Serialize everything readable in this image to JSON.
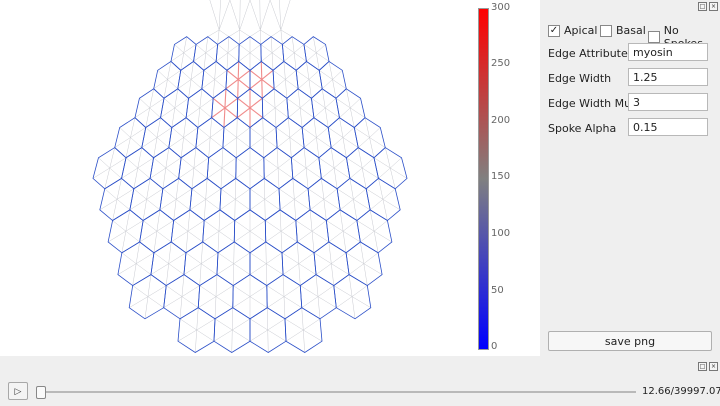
{
  "viewport": {
    "edge_color": "#2b4fc8",
    "spoke_color": "#c9cbd1",
    "highlight_color": "#f08b8b"
  },
  "colorbar": {
    "ticks": [
      "300",
      "250",
      "200",
      "150",
      "100",
      "50",
      "0"
    ],
    "colors": [
      "#ff0000",
      "#808080",
      "#0000ff"
    ]
  },
  "panel": {
    "checkboxes": [
      {
        "label": "Apical",
        "checked": true
      },
      {
        "label": "Basal",
        "checked": false
      },
      {
        "label": "No Spokes",
        "checked": false
      }
    ],
    "fields": [
      {
        "label": "Edge Attribute",
        "value": "myosin"
      },
      {
        "label": "Edge Width",
        "value": "1.25"
      },
      {
        "label": "Edge Width Mult.",
        "value": "3"
      },
      {
        "label": "Spoke Alpha",
        "value": "0.15"
      }
    ],
    "save_label": "save png"
  },
  "timeline": {
    "play_icon": "play-icon",
    "current": "12.66",
    "total": "39997.07",
    "readout": "12.66/39997.07",
    "progress_fraction": 0.0003
  }
}
